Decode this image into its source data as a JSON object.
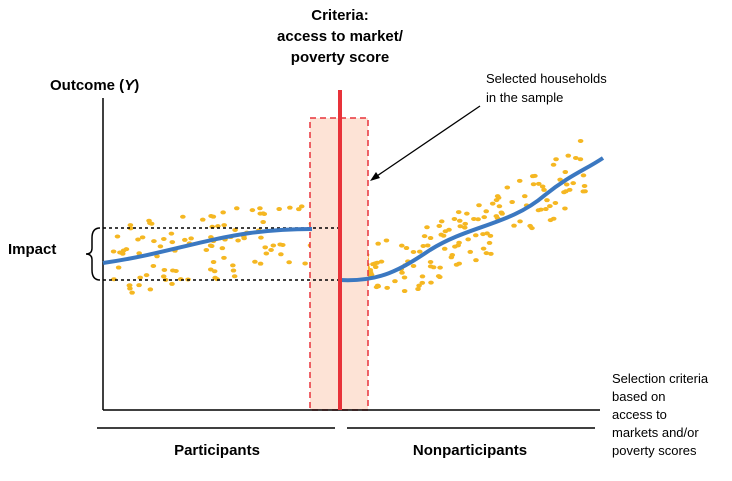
{
  "title": [
    "Criteria:",
    "access to market/",
    "poverty score"
  ],
  "y_axis": {
    "label_prefix": "Outcome (",
    "label_var": "Y",
    "label_suffix": ")"
  },
  "callout": [
    "Selected households",
    "in the sample"
  ],
  "impact_label": "Impact",
  "groups": [
    "Participants",
    "Nonparticipants"
  ],
  "x_axis_note": [
    "Selection criteria",
    "based on",
    "access to",
    "markets and/or",
    "poverty scores"
  ]
}
